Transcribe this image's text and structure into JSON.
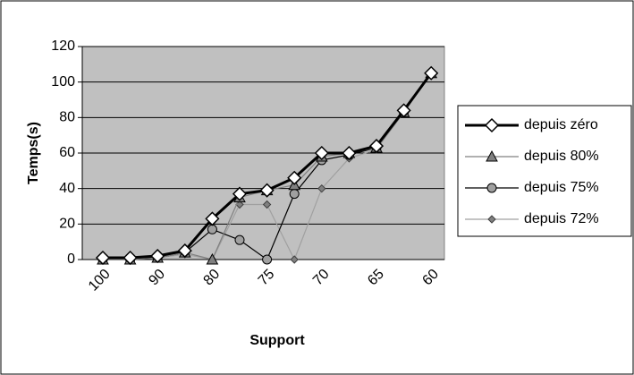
{
  "chart_data": {
    "type": "line",
    "y_label": "Temps(s)",
    "x_label": "Support",
    "categories": [
      "100",
      null,
      "90",
      null,
      "80",
      null,
      "75",
      null,
      "70",
      null,
      "65",
      null,
      "60"
    ],
    "ylim": [
      0,
      120
    ],
    "yticks": [
      0,
      20,
      40,
      60,
      80,
      100,
      120
    ],
    "grid": true,
    "series": [
      {
        "name": "depuis zéro",
        "color": "#000000",
        "marker": "diamond",
        "values": [
          1,
          1,
          2,
          5,
          23,
          37,
          39,
          46,
          60,
          60,
          64,
          84,
          105
        ]
      },
      {
        "name": "depuis 80%",
        "color": "#808080",
        "marker": "triangle",
        "values": [
          0,
          0,
          1,
          4,
          0,
          35,
          39,
          42,
          58,
          60,
          63,
          83,
          105
        ]
      },
      {
        "name": "depuis 75%",
        "color": "#000000",
        "marker": "circle",
        "values": [
          0,
          0,
          1,
          4,
          17,
          11,
          0,
          37,
          56,
          59,
          63,
          83,
          105
        ]
      },
      {
        "name": "depuis 72%",
        "color": "#a0a0a0",
        "marker": "small-diamond",
        "values": [
          0,
          0,
          1,
          3,
          0,
          31,
          31,
          0,
          40,
          57,
          62,
          83,
          105
        ]
      }
    ]
  }
}
